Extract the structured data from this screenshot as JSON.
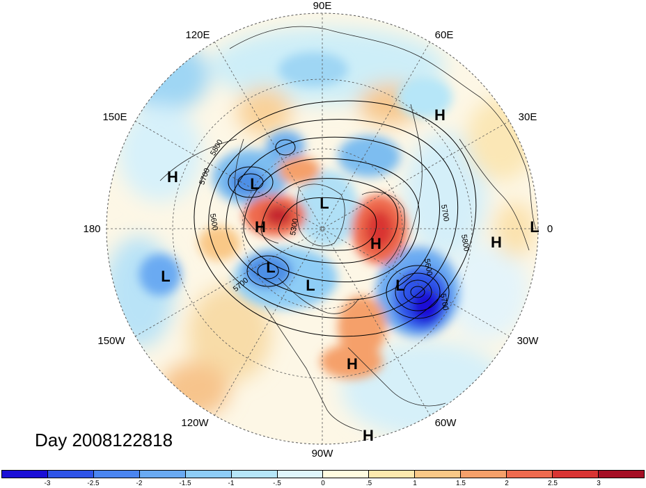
{
  "title": "Day 2008122818",
  "longitude_labels": [
    "90E",
    "60E",
    "30E",
    "0",
    "30W",
    "60W",
    "90W",
    "120W",
    "150W",
    "180",
    "150E",
    "120E"
  ],
  "centers": [
    {
      "type": "H"
    },
    {
      "type": "L"
    },
    {
      "type": "L"
    },
    {
      "type": "H"
    },
    {
      "type": "L"
    },
    {
      "type": "H"
    },
    {
      "type": "L"
    },
    {
      "type": "L"
    },
    {
      "type": "H"
    },
    {
      "type": "L"
    },
    {
      "type": "H"
    },
    {
      "type": "L"
    },
    {
      "type": "H"
    },
    {
      "type": "H"
    }
  ],
  "contour_labels": [
    "5800",
    "5700",
    "5600",
    "5300",
    "5700",
    "5600",
    "5700",
    "5800",
    "5600",
    "5700"
  ],
  "colorbar": {
    "ticks": [
      "-3",
      "-2.5",
      "-2",
      "-1.5",
      "-1",
      "-.5",
      "0",
      ".5",
      "1",
      "1.5",
      "2",
      "2.5",
      "3"
    ],
    "colors": [
      "#1a0fd6",
      "#2e54e8",
      "#4a85f0",
      "#6aaaf2",
      "#8ecdf6",
      "#b6e6f8",
      "#dff5fb",
      "#fffbe0",
      "#fde9ae",
      "#f9c887",
      "#f5a06a",
      "#ee6a4e",
      "#d93433",
      "#a50e24"
    ]
  }
}
